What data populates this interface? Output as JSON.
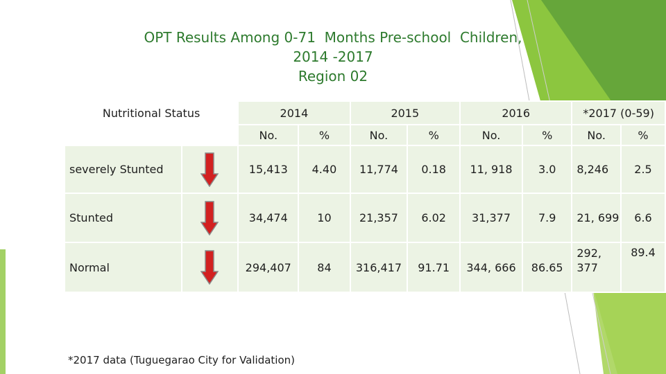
{
  "title": {
    "line1": "OPT Results Among 0-71  Months Pre-school  Children,",
    "line2": "2014 -2017",
    "line3": "Region 02"
  },
  "table": {
    "status_header": "Nutritional Status",
    "years": [
      "2014",
      "2015",
      "2016",
      "*2017 (0-59)"
    ],
    "subheaders": [
      "No.",
      "%",
      "No.",
      "%",
      "No.",
      "%",
      "No.",
      "%"
    ],
    "rows": [
      {
        "label": "severely Stunted",
        "values": [
          "15,413",
          "4.40",
          "11,774",
          "0.18",
          "11, 918",
          "3.0",
          "8,246",
          "2.5"
        ],
        "trend": "down"
      },
      {
        "label": "Stunted",
        "values": [
          "34,474",
          "10",
          "21,357",
          "6.02",
          "31,377",
          "7.9",
          "21, 699",
          "6.6"
        ],
        "trend": "down"
      },
      {
        "label": "Normal",
        "values": [
          "294,407",
          "84",
          "316,417",
          "91.71",
          "344, 666",
          "86.65",
          "292, 377",
          "89.4"
        ],
        "trend": "down"
      }
    ]
  },
  "footnote": "*2017 data (Tuguegarao City for Validation)",
  "colors": {
    "title": "#2d7a2d",
    "cell_bg": "#ecf3e4",
    "arrow": "#d22020",
    "accent_green": "#8cc63f"
  },
  "icons": {
    "trend_icon": "down-arrow-icon"
  }
}
